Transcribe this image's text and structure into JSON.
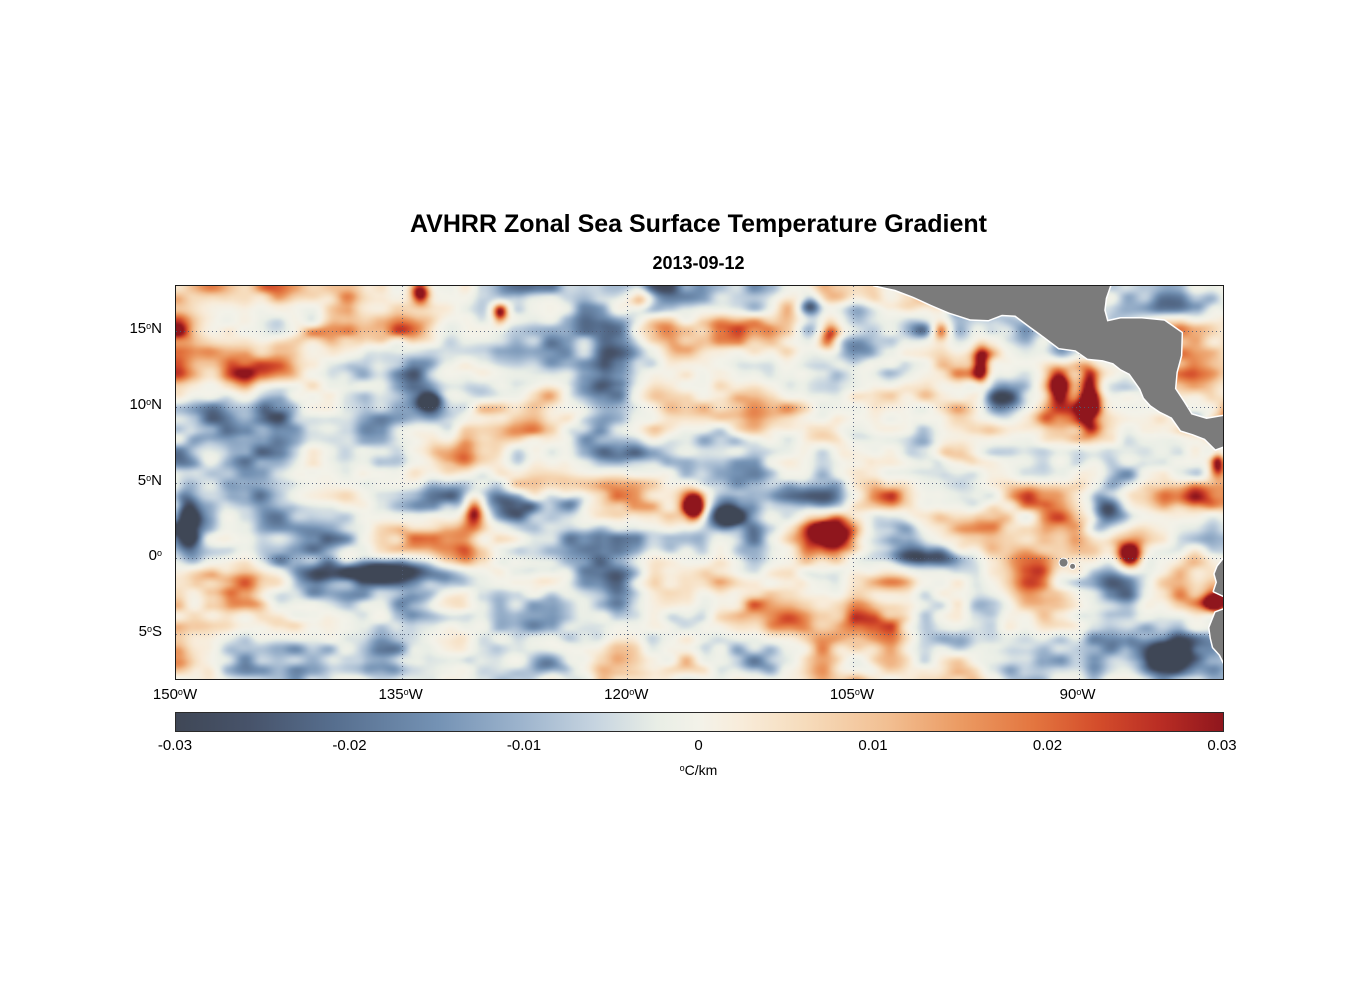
{
  "title": "AVHRR Zonal Sea Surface Temperature Gradient",
  "subtitle": "2013-09-12",
  "chart_data": {
    "type": "heatmap",
    "title": "AVHRR Zonal Sea Surface Temperature Gradient",
    "subtitle": "2013-09-12",
    "xlabel": "",
    "ylabel": "",
    "xlim": [
      -150,
      -80.4
    ],
    "ylim": [
      -8,
      18
    ],
    "grid": {
      "on": true,
      "style": "dotted",
      "color": "#4f5b76"
    },
    "x_ticks": [
      {
        "value": "150",
        "deg": "o",
        "hemi": "W",
        "lon": -150
      },
      {
        "value": "135",
        "deg": "o",
        "hemi": "W",
        "lon": -135
      },
      {
        "value": "120",
        "deg": "o",
        "hemi": "W",
        "lon": -120
      },
      {
        "value": "105",
        "deg": "o",
        "hemi": "W",
        "lon": -105
      },
      {
        "value": "90",
        "deg": "o",
        "hemi": "W",
        "lon": -90
      }
    ],
    "y_ticks": [
      {
        "value": "15",
        "deg": "o",
        "hemi": "N",
        "lat": 15
      },
      {
        "value": "10",
        "deg": "o",
        "hemi": "N",
        "lat": 10
      },
      {
        "value": "5",
        "deg": "o",
        "hemi": "N",
        "lat": 5
      },
      {
        "value": "0",
        "deg": "o",
        "hemi": "",
        "lat": 0
      },
      {
        "value": "5",
        "deg": "o",
        "hemi": "S",
        "lat": -5
      }
    ],
    "colorbar": {
      "min": -0.03,
      "max": 0.03,
      "ticks": [
        "-0.03",
        "-0.02",
        "-0.01",
        "0",
        "0.01",
        "0.02",
        "0.03"
      ],
      "degree": "o",
      "unit": "C/km",
      "stops": [
        [
          0.0,
          "#3f4756"
        ],
        [
          0.07,
          "#47536a"
        ],
        [
          0.15,
          "#566e8e"
        ],
        [
          0.25,
          "#7492b4"
        ],
        [
          0.33,
          "#9db4cd"
        ],
        [
          0.4,
          "#c6d4e0"
        ],
        [
          0.46,
          "#e9eee6"
        ],
        [
          0.5,
          "#f3f2e9"
        ],
        [
          0.54,
          "#f8ecda"
        ],
        [
          0.6,
          "#f6dcbc"
        ],
        [
          0.68,
          "#f2bf92"
        ],
        [
          0.75,
          "#eb9a62"
        ],
        [
          0.82,
          "#e3753f"
        ],
        [
          0.88,
          "#d44d2b"
        ],
        [
          0.94,
          "#b92d24"
        ],
        [
          1.0,
          "#8f161d"
        ]
      ]
    },
    "field": {
      "description": "Noisy mesoscale zonal SST gradient field (deg C per km), mostly pale near zero with scattered positive (red) and negative (blue) eddies",
      "seed": 20130912,
      "octaves": [
        {
          "sx": 72,
          "sy": 42,
          "w": 1.0
        },
        {
          "sx": 34,
          "sy": 21,
          "w": 0.55
        },
        {
          "sx": 17,
          "sy": 11,
          "w": 0.3
        }
      ],
      "base_amp": 0.66,
      "feature_gain": 1.5,
      "shape_pow": 1.35,
      "features": [
        {
          "lon": -149.2,
          "lat": 2.8,
          "s": -0.95,
          "rx": 1.0,
          "ry": 2.2
        },
        {
          "lon": -136.5,
          "lat": -0.9,
          "s": -0.75,
          "rx": 4.0,
          "ry": 0.8
        },
        {
          "lon": -141.0,
          "lat": 15.7,
          "s": -0.55,
          "rx": 0.8,
          "ry": 0.6
        },
        {
          "lon": -133.8,
          "lat": 17.6,
          "s": 0.85,
          "rx": 0.7,
          "ry": 0.8
        },
        {
          "lon": -128.5,
          "lat": 16.2,
          "s": 0.8,
          "rx": 0.6,
          "ry": 0.8
        },
        {
          "lon": -133.2,
          "lat": 10.3,
          "s": -0.7,
          "rx": 0.9,
          "ry": 0.7
        },
        {
          "lon": -130.2,
          "lat": 3.3,
          "s": 0.95,
          "rx": 0.8,
          "ry": 1.1
        },
        {
          "lon": -127.3,
          "lat": 3.6,
          "s": -0.85,
          "rx": 1.6,
          "ry": 0.9
        },
        {
          "lon": -123.8,
          "lat": 3.6,
          "s": -0.75,
          "rx": 1.4,
          "ry": 0.8
        },
        {
          "lon": -119.2,
          "lat": 17.2,
          "s": 0.65,
          "rx": 0.9,
          "ry": 0.7
        },
        {
          "lon": -115.5,
          "lat": 3.4,
          "s": 0.95,
          "rx": 0.75,
          "ry": 0.9
        },
        {
          "lon": -113.4,
          "lat": 2.9,
          "s": -0.9,
          "rx": 1.3,
          "ry": 1.0
        },
        {
          "lon": -107.9,
          "lat": 16.9,
          "s": -0.7,
          "rx": 0.8,
          "ry": 0.8
        },
        {
          "lon": -106.6,
          "lat": 14.9,
          "s": 0.85,
          "rx": 0.8,
          "ry": 1.0
        },
        {
          "lon": -106.2,
          "lat": 1.6,
          "s": 0.8,
          "rx": 2.0,
          "ry": 1.2
        },
        {
          "lon": -100.3,
          "lat": 0.1,
          "s": -0.75,
          "rx": 2.6,
          "ry": 0.8
        },
        {
          "lon": -99.2,
          "lat": 15.1,
          "s": 0.8,
          "rx": 0.7,
          "ry": 0.8
        },
        {
          "lon": -96.5,
          "lat": 12.8,
          "s": 0.7,
          "rx": 0.6,
          "ry": 1.4
        },
        {
          "lon": -94.6,
          "lat": 10.6,
          "s": -0.95,
          "rx": 2.0,
          "ry": 1.4
        },
        {
          "lon": -91.3,
          "lat": 11.4,
          "s": 0.85,
          "rx": 0.8,
          "ry": 1.2
        },
        {
          "lon": -89.3,
          "lat": 10.6,
          "s": 0.9,
          "rx": 0.8,
          "ry": 2.2
        },
        {
          "lon": -88.2,
          "lat": 2.9,
          "s": -0.85,
          "rx": 1.2,
          "ry": 1.6
        },
        {
          "lon": -86.6,
          "lat": 0.1,
          "s": 0.9,
          "rx": 0.9,
          "ry": 0.9
        },
        {
          "lon": -84.3,
          "lat": -6.2,
          "s": -0.9,
          "rx": 1.6,
          "ry": 1.4
        },
        {
          "lon": -80.8,
          "lat": -2.9,
          "s": 0.95,
          "rx": 0.9,
          "ry": 0.8
        },
        {
          "lon": -80.7,
          "lat": 6.3,
          "s": 0.8,
          "rx": 0.6,
          "ry": 0.9
        }
      ]
    },
    "land": {
      "color": "#7b7b7b",
      "coast_color": "#ffffff",
      "coast_width": 3,
      "polygons": [
        [
          [
            -103.6,
            18.05
          ],
          [
            -102.2,
            17.75
          ],
          [
            -101.0,
            17.3
          ],
          [
            -99.8,
            16.75
          ],
          [
            -98.6,
            16.25
          ],
          [
            -97.2,
            15.8
          ],
          [
            -96.0,
            15.75
          ],
          [
            -95.1,
            16.1
          ],
          [
            -94.2,
            16.05
          ],
          [
            -93.2,
            15.3
          ],
          [
            -92.3,
            14.65
          ],
          [
            -91.3,
            13.9
          ],
          [
            -90.2,
            13.75
          ],
          [
            -89.4,
            13.2
          ],
          [
            -88.4,
            13.1
          ],
          [
            -87.7,
            12.9
          ],
          [
            -87.2,
            12.5
          ],
          [
            -86.6,
            12.2
          ],
          [
            -85.9,
            11.2
          ],
          [
            -85.65,
            10.6
          ],
          [
            -85.2,
            10.1
          ],
          [
            -84.6,
            9.7
          ],
          [
            -83.8,
            9.3
          ],
          [
            -83.2,
            8.45
          ],
          [
            -82.4,
            8.2
          ],
          [
            -81.6,
            7.9
          ],
          [
            -80.9,
            7.2
          ],
          [
            -80.35,
            7.4
          ],
          [
            -80.35,
            9.4
          ],
          [
            -81.5,
            9.2
          ],
          [
            -82.5,
            9.5
          ],
          [
            -83.0,
            10.3
          ],
          [
            -83.6,
            11.2
          ],
          [
            -83.5,
            12.3
          ],
          [
            -83.2,
            13.4
          ],
          [
            -83.15,
            14.9
          ],
          [
            -84.3,
            15.7
          ],
          [
            -85.8,
            15.85
          ],
          [
            -87.2,
            15.85
          ],
          [
            -88.1,
            15.65
          ],
          [
            -88.3,
            16.4
          ],
          [
            -88.2,
            17.2
          ],
          [
            -87.9,
            18.05
          ]
        ],
        [
          [
            -80.35,
            -0.05
          ],
          [
            -80.75,
            -0.55
          ],
          [
            -80.95,
            -1.05
          ],
          [
            -80.8,
            -1.6
          ],
          [
            -81.0,
            -2.2
          ],
          [
            -80.35,
            -2.5
          ]
        ],
        [
          [
            -80.35,
            -3.4
          ],
          [
            -80.9,
            -3.6
          ],
          [
            -81.3,
            -4.6
          ],
          [
            -81.2,
            -5.3
          ],
          [
            -81.05,
            -5.9
          ],
          [
            -80.6,
            -6.4
          ],
          [
            -80.35,
            -6.9
          ]
        ]
      ],
      "islands": [
        {
          "lon": -91.0,
          "lat": -0.3,
          "r": 4
        },
        {
          "lon": -90.4,
          "lat": -0.55,
          "r": 2.5
        }
      ]
    }
  }
}
